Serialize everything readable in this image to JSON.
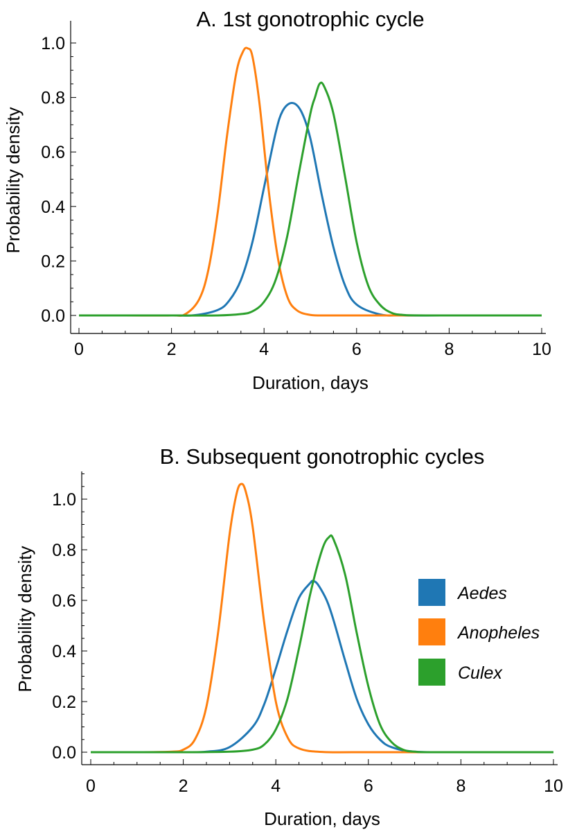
{
  "chart_data": [
    {
      "type": "line",
      "title": "A. 1st gonotrophic cycle",
      "xlabel": "Duration, days",
      "ylabel": "Probability density",
      "xlim": [
        0,
        10
      ],
      "ylim": [
        0,
        1.0
      ],
      "xticks": [
        "0",
        "2",
        "4",
        "6",
        "8",
        "10"
      ],
      "yticks": [
        "0.0",
        "0.2",
        "0.4",
        "0.6",
        "0.8",
        "1.0"
      ],
      "grid": false,
      "series": [
        {
          "name": "Aedes",
          "color": "#1f77b4",
          "x": [
            0,
            1,
            2,
            2.5,
            3,
            3.25,
            3.5,
            3.75,
            4,
            4.25,
            4.4,
            4.6,
            4.8,
            5,
            5.25,
            5.5,
            5.75,
            6,
            6.5,
            7,
            8,
            10
          ],
          "y": [
            0,
            0,
            0,
            0.001,
            0.02,
            0.055,
            0.13,
            0.27,
            0.47,
            0.67,
            0.75,
            0.78,
            0.75,
            0.65,
            0.44,
            0.25,
            0.11,
            0.04,
            0.004,
            0,
            0,
            0
          ]
        },
        {
          "name": "Anopheles",
          "color": "#ff7f0e",
          "x": [
            0,
            1,
            2,
            2.3,
            2.6,
            2.8,
            3,
            3.2,
            3.4,
            3.55,
            3.65,
            3.75,
            3.9,
            4.1,
            4.3,
            4.5,
            4.7,
            5,
            5.5,
            7,
            10
          ],
          "y": [
            0,
            0,
            0,
            0.005,
            0.06,
            0.17,
            0.38,
            0.66,
            0.89,
            0.97,
            0.98,
            0.95,
            0.78,
            0.46,
            0.21,
            0.07,
            0.02,
            0.002,
            0,
            0,
            0
          ]
        },
        {
          "name": "Culex",
          "color": "#2ca02c",
          "x": [
            0,
            1,
            2,
            3,
            3.5,
            3.75,
            4,
            4.25,
            4.5,
            4.75,
            5,
            5.1,
            5.2,
            5.3,
            5.5,
            5.75,
            6,
            6.25,
            6.5,
            6.75,
            7,
            7.5,
            10
          ],
          "y": [
            0,
            0,
            0,
            0,
            0.005,
            0.015,
            0.05,
            0.13,
            0.29,
            0.52,
            0.74,
            0.8,
            0.85,
            0.84,
            0.74,
            0.51,
            0.27,
            0.11,
            0.04,
            0.01,
            0.002,
            0,
            0
          ]
        }
      ]
    },
    {
      "type": "line",
      "title": "B. Subsequent gonotrophic cycles",
      "xlabel": "Duration, days",
      "ylabel": "Probability density",
      "xlim": [
        0,
        10
      ],
      "ylim": [
        0,
        1.1
      ],
      "xticks": [
        "0",
        "2",
        "4",
        "6",
        "8",
        "10"
      ],
      "yticks": [
        "0.0",
        "0.2",
        "0.4",
        "0.6",
        "0.8",
        "1.0"
      ],
      "grid": false,
      "legend_position": "right",
      "series": [
        {
          "name": "Aedes",
          "color": "#1f77b4",
          "x": [
            0,
            1,
            2,
            2.5,
            3,
            3.5,
            3.75,
            4,
            4.25,
            4.5,
            4.75,
            4.8,
            4.9,
            5.1,
            5.25,
            5.5,
            5.75,
            6,
            6.25,
            6.5,
            7,
            8,
            10
          ],
          "y": [
            0,
            0,
            0,
            0.002,
            0.02,
            0.1,
            0.19,
            0.33,
            0.48,
            0.61,
            0.67,
            0.675,
            0.665,
            0.6,
            0.52,
            0.36,
            0.21,
            0.11,
            0.05,
            0.02,
            0.002,
            0,
            0
          ]
        },
        {
          "name": "Anopheles",
          "color": "#ff7f0e",
          "x": [
            0,
            1,
            1.75,
            2,
            2.25,
            2.5,
            2.75,
            3,
            3.15,
            3.25,
            3.35,
            3.5,
            3.75,
            4,
            4.25,
            4.5,
            5,
            6,
            10
          ],
          "y": [
            0,
            0,
            0.002,
            0.01,
            0.05,
            0.18,
            0.47,
            0.86,
            1.02,
            1.06,
            1.03,
            0.89,
            0.51,
            0.2,
            0.06,
            0.015,
            0.001,
            0,
            0
          ]
        },
        {
          "name": "Culex",
          "color": "#2ca02c",
          "x": [
            0,
            1,
            2,
            3,
            3.5,
            3.75,
            4,
            4.25,
            4.5,
            4.75,
            5,
            5.15,
            5.25,
            5.5,
            5.75,
            6,
            6.25,
            6.5,
            6.75,
            7,
            7.5,
            10
          ],
          "y": [
            0,
            0,
            0,
            0.002,
            0.01,
            0.03,
            0.09,
            0.21,
            0.41,
            0.63,
            0.8,
            0.85,
            0.84,
            0.7,
            0.47,
            0.26,
            0.11,
            0.04,
            0.01,
            0.002,
            0,
            0
          ]
        }
      ]
    }
  ],
  "legend": {
    "items": [
      {
        "label": "Aedes",
        "color": "#1f77b4"
      },
      {
        "label": "Anopheles",
        "color": "#ff7f0e"
      },
      {
        "label": "Culex",
        "color": "#2ca02c"
      }
    ]
  }
}
